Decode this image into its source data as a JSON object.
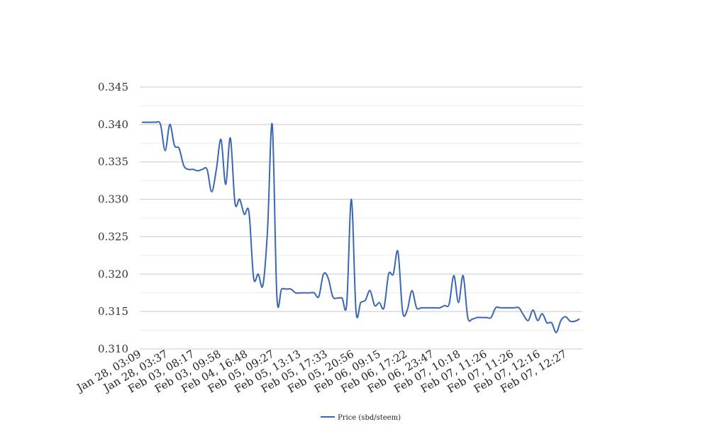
{
  "chart_data": {
    "type": "line",
    "xlabel": "",
    "ylabel": "",
    "ylim": [
      0.31,
      0.345
    ],
    "yticks": [
      "0.310",
      "0.315",
      "0.320",
      "0.325",
      "0.330",
      "0.335",
      "0.340",
      "0.345"
    ],
    "xticks": [
      "Jan 28, 03:09",
      "Jan 28, 03:37",
      "Feb 03, 08:17",
      "Feb 03, 09:58",
      "Feb 04, 16:48",
      "Feb 05, 09:27",
      "Feb 05, 13:13",
      "Feb 05, 17:33",
      "Feb 05, 20:56",
      "Feb 06, 09:15",
      "Feb 06, 17:22",
      "Feb 06, 23:47",
      "Feb 07, 10:18",
      "Feb 07, 11:26",
      "Feb 07, 11:26",
      "Feb 07, 12:16",
      "Feb 07, 12:27"
    ],
    "grid": true,
    "legend_position": "bottom",
    "color": "#3B66B5",
    "series": [
      {
        "name": "Price (sbd/steem)",
        "values": [
          0.3403,
          0.3403,
          0.3403,
          0.3403,
          0.34,
          0.3365,
          0.34,
          0.3372,
          0.3368,
          0.3345,
          0.334,
          0.334,
          0.3338,
          0.334,
          0.334,
          0.331,
          0.334,
          0.338,
          0.332,
          0.3382,
          0.3295,
          0.33,
          0.328,
          0.3283,
          0.3195,
          0.32,
          0.3185,
          0.326,
          0.34,
          0.317,
          0.318,
          0.318,
          0.318,
          0.3175,
          0.3175,
          0.3175,
          0.3175,
          0.3175,
          0.317,
          0.32,
          0.3195,
          0.317,
          0.3168,
          0.3168,
          0.316,
          0.33,
          0.315,
          0.3162,
          0.3165,
          0.3178,
          0.3158,
          0.3162,
          0.3155,
          0.32,
          0.32,
          0.323,
          0.315,
          0.3152,
          0.3178,
          0.3155,
          0.3155,
          0.3155,
          0.3155,
          0.3155,
          0.3155,
          0.3158,
          0.316,
          0.3198,
          0.3162,
          0.3198,
          0.3142,
          0.314,
          0.3142,
          0.3142,
          0.3142,
          0.3142,
          0.3155,
          0.3155,
          0.3155,
          0.3155,
          0.3155,
          0.3155,
          0.3145,
          0.3138,
          0.3152,
          0.3138,
          0.3147,
          0.3135,
          0.3135,
          0.3122,
          0.3138,
          0.3143,
          0.3137,
          0.3137,
          0.314
        ]
      }
    ]
  }
}
